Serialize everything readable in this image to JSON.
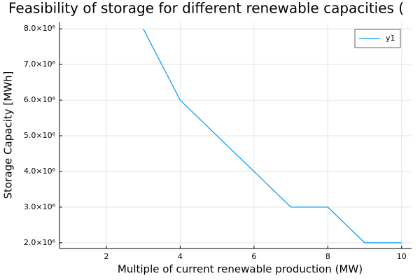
{
  "chart_data": {
    "type": "line",
    "title": "Feasibility of storage for different renewable capacities (",
    "x_label": "Multiple of current renewable production (MW)",
    "y_label": "Storage Capacity [MWh]",
    "x": [
      1,
      2,
      3,
      4,
      5,
      6,
      7,
      8,
      9,
      10
    ],
    "series": [
      {
        "name": "y1",
        "color": "#009af9",
        "values": [
          null,
          null,
          8000000,
          6000000,
          5000000,
          4000000,
          3000000,
          3000000,
          2000000,
          2000000
        ]
      }
    ],
    "xlim": [
      0.73,
      10.27
    ],
    "xticks": [
      2,
      4,
      6,
      8,
      10
    ],
    "ylim": [
      1840000,
      8180000
    ],
    "yticks": [
      {
        "value": 2000000,
        "label": "2.0×10⁶"
      },
      {
        "value": 3000000,
        "label": "3.0×10⁶"
      },
      {
        "value": 4000000,
        "label": "4.0×10⁶"
      },
      {
        "value": 5000000,
        "label": "5.0×10⁶"
      },
      {
        "value": 6000000,
        "label": "6.0×10⁶"
      },
      {
        "value": 7000000,
        "label": "7.0×10⁶"
      },
      {
        "value": 8000000,
        "label": "8.0×10⁶"
      }
    ],
    "grid": true,
    "legend": "top-right"
  }
}
